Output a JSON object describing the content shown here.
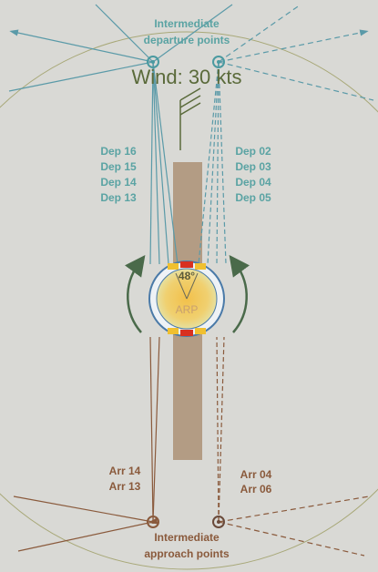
{
  "departure_label": [
    "Intermediate",
    "departure points"
  ],
  "wind": "Wind: 30 kts",
  "dep_left": [
    "Dep 16",
    "Dep 15",
    "Dep 14",
    "Dep 13"
  ],
  "dep_right": [
    "Dep 02",
    "Dep 03",
    "Dep 04",
    "Dep 05"
  ],
  "compass": {
    "angle": "48°",
    "center": "ARP"
  },
  "arr_left": [
    "Arr 14",
    "Arr 13"
  ],
  "arr_right": [
    "Arr 04",
    "Arr 06"
  ],
  "approach_label": [
    "Intermediate",
    "approach points"
  ]
}
